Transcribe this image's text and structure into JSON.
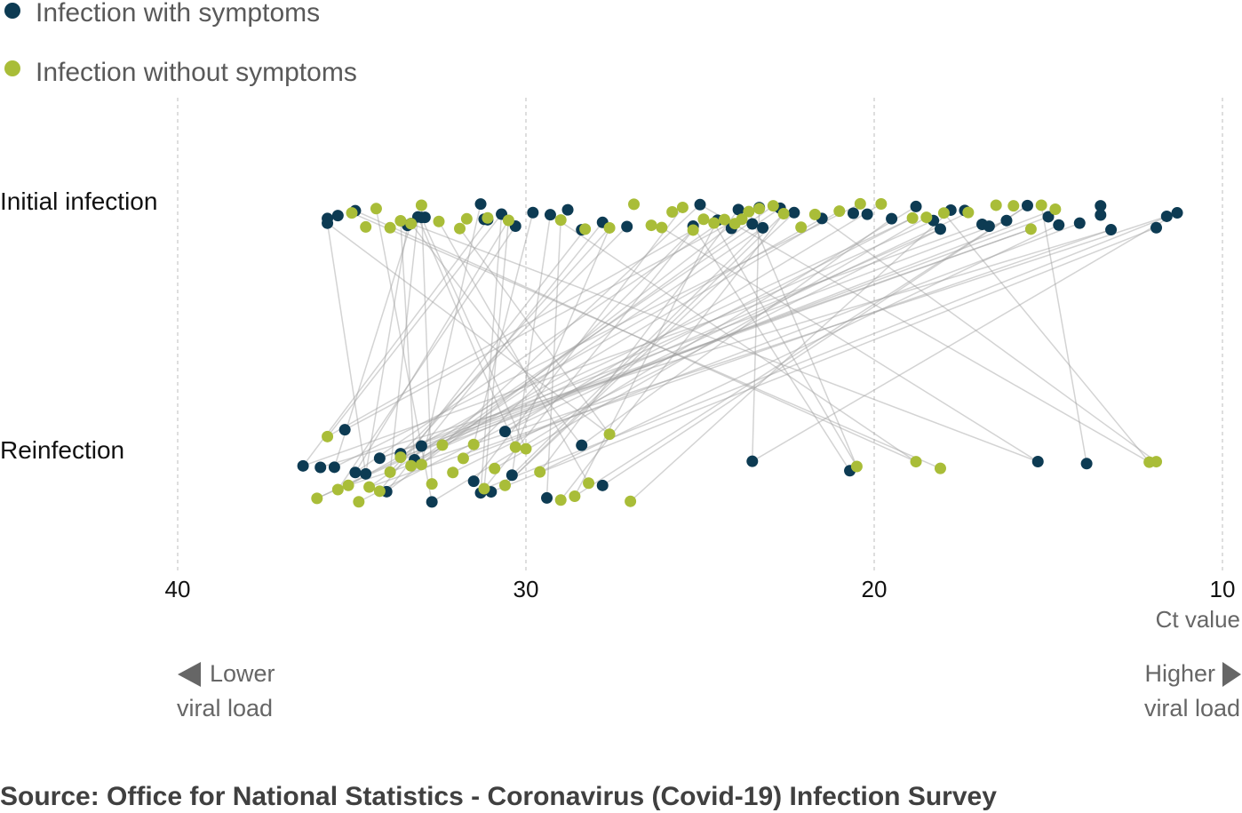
{
  "chart_data": {
    "type": "scatter",
    "title": "",
    "xlabel": "Ct value",
    "x_reversed": true,
    "xlim": [
      40,
      10
    ],
    "x_ticks": [
      "40",
      "30",
      "20",
      "10"
    ],
    "rows": [
      "Initial infection",
      "Reinfection"
    ],
    "grid": "vertical dashed",
    "legend_position": "top-left",
    "legend": [
      {
        "key": "symptomatic",
        "label": "Infection with symptoms",
        "color": "#0d3b53"
      },
      {
        "key": "asymptomatic",
        "label": "Infection without symptoms",
        "color": "#a9bd38"
      }
    ],
    "lower_hint": [
      "Lower",
      "viral load"
    ],
    "higher_hint": [
      "Higher",
      "viral load"
    ],
    "source": "Source: Office for National Statistics - Coronavirus (Covid-19) Infection Survey",
    "series": [
      {
        "name": "Infection with symptoms",
        "color": "#0d3b53",
        "initial": [
          35.7,
          35.7,
          35.4,
          34.9,
          33.4,
          33.3,
          33.1,
          33.0,
          32.9,
          31.3,
          31.2,
          31.1,
          30.7,
          30.3,
          29.8,
          29.3,
          28.8,
          28.4,
          27.8,
          27.1,
          25.2,
          25.0,
          24.5,
          24.1,
          23.9,
          23.5,
          23.3,
          23.2,
          22.7,
          22.3,
          21.5,
          20.6,
          20.2,
          19.5,
          18.8,
          18.3,
          18.1,
          17.8,
          17.4,
          16.9,
          16.7,
          16.2,
          15.6,
          15.0,
          14.7,
          14.1,
          13.5,
          13.5,
          13.2,
          11.9,
          11.6,
          11.3
        ],
        "reinfection": [
          36.4,
          35.9,
          35.5,
          35.2,
          34.9,
          34.6,
          34.2,
          34.0,
          33.6,
          33.2,
          33.0,
          32.7,
          31.5,
          31.3,
          31.0,
          30.6,
          30.4,
          29.4,
          28.4,
          27.8,
          23.5,
          20.7,
          15.3,
          13.9
        ]
      },
      {
        "name": "Infection without symptoms",
        "color": "#a9bd38",
        "initial": [
          35.0,
          34.6,
          34.3,
          33.9,
          33.6,
          33.3,
          33.0,
          32.5,
          31.9,
          31.7,
          31.1,
          30.5,
          29.0,
          28.3,
          27.6,
          26.9,
          26.4,
          26.1,
          25.8,
          25.5,
          25.2,
          24.9,
          24.6,
          24.3,
          24.0,
          23.8,
          23.6,
          23.3,
          22.9,
          22.6,
          22.1,
          21.7,
          21.0,
          20.4,
          19.8,
          18.9,
          18.5,
          18.0,
          17.3,
          16.5,
          16.0,
          15.5,
          15.2,
          14.8
        ],
        "reinfection": [
          36.0,
          35.7,
          35.4,
          35.1,
          34.8,
          34.5,
          34.2,
          33.9,
          33.6,
          33.3,
          33.0,
          32.7,
          32.4,
          32.1,
          31.8,
          31.5,
          31.2,
          30.9,
          30.6,
          30.3,
          30.0,
          29.6,
          29.0,
          28.6,
          28.2,
          27.6,
          27.0,
          20.5,
          18.8,
          18.1,
          12.1,
          11.9
        ]
      }
    ]
  }
}
